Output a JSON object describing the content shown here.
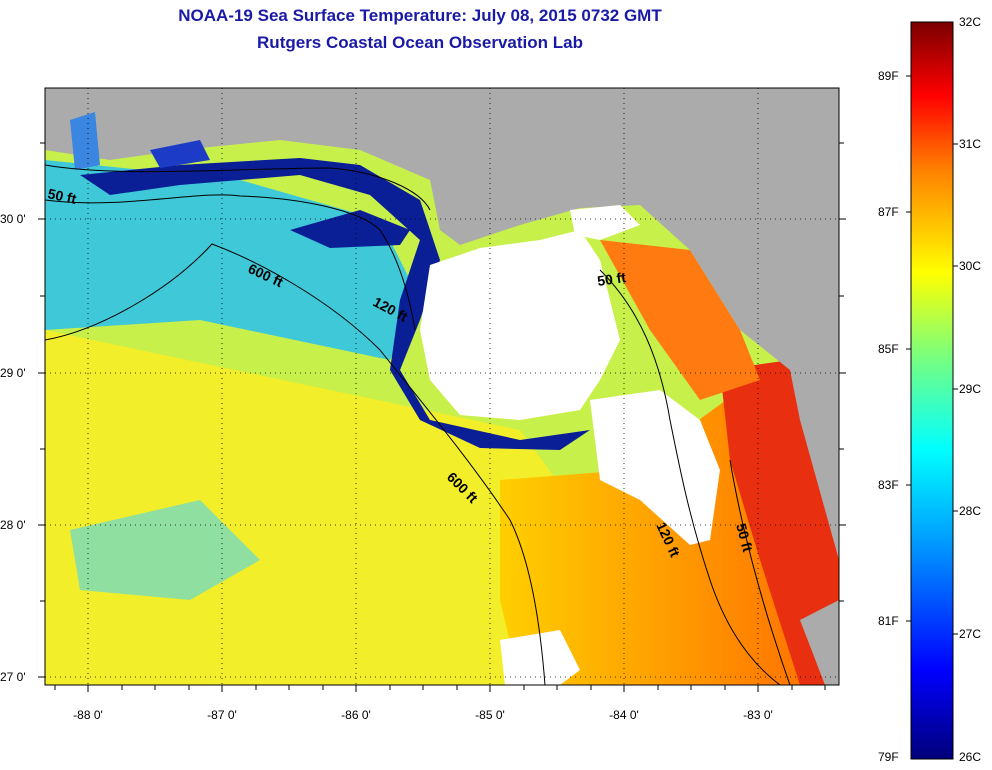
{
  "title_line1": "NOAA-19 Sea Surface Temperature:  July 08, 2015 0732 GMT",
  "title_line2": "Rutgers Coastal Ocean Observation Lab",
  "colors": {
    "land": "#ababab",
    "cloud": "#ffffff",
    "cold": "#0a1e96",
    "ocean_warm": "#ff6a00"
  },
  "map": {
    "lon_ticks": [
      "-88 0'",
      "-87 0'",
      "-86 0'",
      "-85 0'",
      "-84 0'",
      "-83 0'"
    ],
    "lat_ticks": [
      "30 0'",
      "29 0'",
      "28 0'",
      "27 0'"
    ],
    "contours": [
      "50 ft",
      "600 ft",
      "120 ft",
      "50 ft",
      "600 ft",
      "120 ft",
      "50 ft"
    ]
  },
  "colorbar": {
    "celsius": [
      "32C",
      "31C",
      "30C",
      "29C",
      "28C",
      "27C",
      "26C"
    ],
    "fahrenheit": [
      "89F",
      "87F",
      "85F",
      "83F",
      "81F",
      "79F"
    ]
  }
}
